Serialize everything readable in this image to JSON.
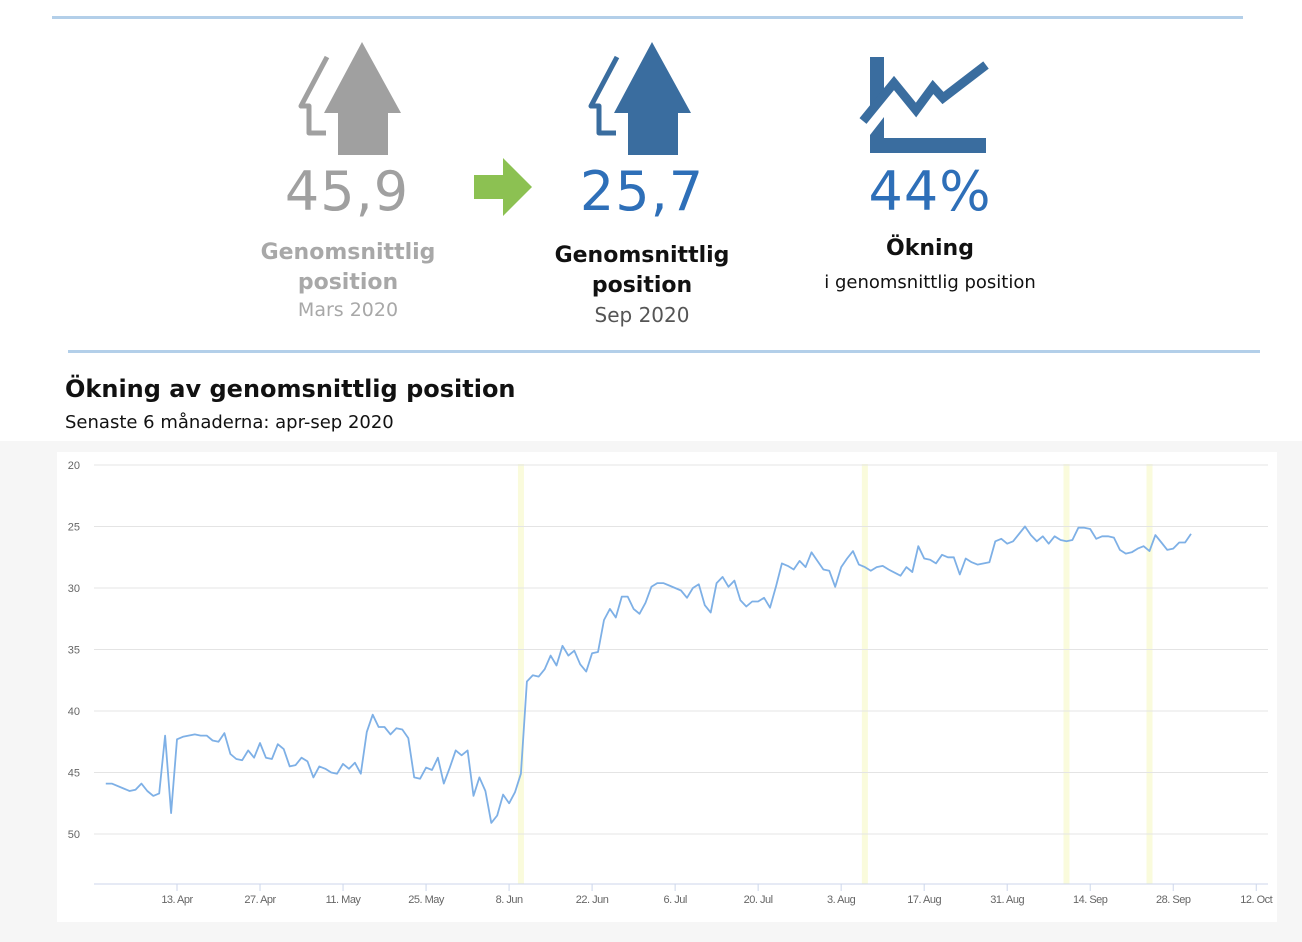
{
  "kpis": {
    "before": {
      "value": "45,9",
      "label": "Genomsnittlig position",
      "period": "Mars 2020",
      "icon": "double-arrow-up-icon",
      "color": "#a0a0a0"
    },
    "after": {
      "value": "25,7",
      "label": "Genomsnittlig position",
      "period": "Sep 2020",
      "icon": "double-arrow-up-icon",
      "color": "#3a6d9f"
    },
    "change": {
      "value": "44%",
      "label": "Ökning",
      "description": "i genomsnittlig position",
      "icon": "trend-chart-icon"
    },
    "arrow_color": "#8cc152",
    "value_color": "#2e6fb8"
  },
  "section": {
    "title": "Ökning av genomsnittlig position",
    "subtitle": "Senaste 6 månaderna: apr-sep 2020"
  },
  "chart_data": {
    "type": "line",
    "title": "Ökning av genomsnittlig position",
    "xlabel": "",
    "ylabel": "",
    "x_unit": "days since 1 Apr 2020",
    "ylim": [
      20,
      54
    ],
    "y_inverted": true,
    "yticks": [
      "20",
      "25",
      "30",
      "35",
      "40",
      "45",
      "50"
    ],
    "xticks": [
      {
        "label": "13. Apr",
        "day": 12
      },
      {
        "label": "27. Apr",
        "day": 26
      },
      {
        "label": "11. May",
        "day": 40
      },
      {
        "label": "25. May",
        "day": 54
      },
      {
        "label": "8. Jun",
        "day": 68
      },
      {
        "label": "22. Jun",
        "day": 82
      },
      {
        "label": "6. Jul",
        "day": 96
      },
      {
        "label": "20. Jul",
        "day": 110
      },
      {
        "label": "3. Aug",
        "day": 124
      },
      {
        "label": "17. Aug",
        "day": 138
      },
      {
        "label": "31. Aug",
        "day": 152
      },
      {
        "label": "14. Sep",
        "day": 166
      },
      {
        "label": "28. Sep",
        "day": 180
      },
      {
        "label": "12. Oct",
        "day": 194
      }
    ],
    "grid": true,
    "line_color": "#7eb0e6",
    "band_color": "#fafbdc",
    "annotation_bands": [
      70,
      128,
      162,
      176
    ],
    "series": [
      {
        "name": "Genomsnittlig position",
        "points": [
          [
            0,
            45.9
          ],
          [
            1,
            45.9
          ],
          [
            3,
            46.3
          ],
          [
            4,
            46.5
          ],
          [
            5,
            46.4
          ],
          [
            6,
            45.9
          ],
          [
            7,
            46.5
          ],
          [
            8,
            46.9
          ],
          [
            9,
            46.7
          ],
          [
            10,
            42.0
          ],
          [
            11,
            48.3
          ],
          [
            12,
            42.3
          ],
          [
            13,
            42.1
          ],
          [
            15,
            41.9
          ],
          [
            16,
            42.0
          ],
          [
            17,
            42.0
          ],
          [
            18,
            42.4
          ],
          [
            19,
            42.5
          ],
          [
            20,
            41.8
          ],
          [
            21,
            43.5
          ],
          [
            22,
            43.9
          ],
          [
            23,
            44.0
          ],
          [
            24,
            43.2
          ],
          [
            25,
            43.8
          ],
          [
            26,
            42.6
          ],
          [
            27,
            43.8
          ],
          [
            28,
            43.9
          ],
          [
            29,
            42.7
          ],
          [
            30,
            43.1
          ],
          [
            31,
            44.5
          ],
          [
            32,
            44.4
          ],
          [
            33,
            43.8
          ],
          [
            34,
            44.1
          ],
          [
            35,
            45.4
          ],
          [
            36,
            44.5
          ],
          [
            37,
            44.7
          ],
          [
            38,
            45.0
          ],
          [
            39,
            45.1
          ],
          [
            40,
            44.3
          ],
          [
            41,
            44.7
          ],
          [
            42,
            44.2
          ],
          [
            43,
            45.1
          ],
          [
            44,
            41.7
          ],
          [
            45,
            40.3
          ],
          [
            46,
            41.3
          ],
          [
            47,
            41.3
          ],
          [
            48,
            41.9
          ],
          [
            49,
            41.4
          ],
          [
            50,
            41.5
          ],
          [
            51,
            42.2
          ],
          [
            52,
            45.4
          ],
          [
            53,
            45.5
          ],
          [
            54,
            44.6
          ],
          [
            55,
            44.8
          ],
          [
            56,
            43.8
          ],
          [
            57,
            45.9
          ],
          [
            58,
            44.6
          ],
          [
            59,
            43.2
          ],
          [
            60,
            43.6
          ],
          [
            61,
            43.2
          ],
          [
            62,
            46.9
          ],
          [
            63,
            45.4
          ],
          [
            64,
            46.5
          ],
          [
            65,
            49.1
          ],
          [
            66,
            48.5
          ],
          [
            67,
            46.8
          ],
          [
            68,
            47.5
          ],
          [
            69,
            46.6
          ],
          [
            70,
            45.1
          ],
          [
            71,
            37.6
          ],
          [
            72,
            37.1
          ],
          [
            73,
            37.2
          ],
          [
            74,
            36.6
          ],
          [
            75,
            35.5
          ],
          [
            76,
            36.3
          ],
          [
            77,
            34.7
          ],
          [
            78,
            35.5
          ],
          [
            79,
            35.1
          ],
          [
            80,
            36.2
          ],
          [
            81,
            36.8
          ],
          [
            82,
            35.3
          ],
          [
            83,
            35.2
          ],
          [
            84,
            32.6
          ],
          [
            85,
            31.7
          ],
          [
            86,
            32.4
          ],
          [
            87,
            30.7
          ],
          [
            88,
            30.7
          ],
          [
            89,
            31.7
          ],
          [
            90,
            32.1
          ],
          [
            91,
            31.2
          ],
          [
            92,
            29.9
          ],
          [
            93,
            29.6
          ],
          [
            94,
            29.6
          ],
          [
            95,
            29.8
          ],
          [
            96,
            30.0
          ],
          [
            97,
            30.2
          ],
          [
            98,
            30.8
          ],
          [
            99,
            30.0
          ],
          [
            100,
            29.7
          ],
          [
            101,
            31.4
          ],
          [
            102,
            32.0
          ],
          [
            103,
            29.6
          ],
          [
            104,
            29.1
          ],
          [
            105,
            29.9
          ],
          [
            106,
            29.4
          ],
          [
            107,
            31.0
          ],
          [
            108,
            31.5
          ],
          [
            109,
            31.1
          ],
          [
            110,
            31.1
          ],
          [
            111,
            30.8
          ],
          [
            112,
            31.6
          ],
          [
            113,
            29.9
          ],
          [
            114,
            28.0
          ],
          [
            115,
            28.2
          ],
          [
            116,
            28.5
          ],
          [
            117,
            27.8
          ],
          [
            118,
            28.3
          ],
          [
            119,
            27.1
          ],
          [
            120,
            27.8
          ],
          [
            121,
            28.5
          ],
          [
            122,
            28.6
          ],
          [
            123,
            29.9
          ],
          [
            124,
            28.3
          ],
          [
            125,
            27.6
          ],
          [
            126,
            27.0
          ],
          [
            127,
            28.1
          ],
          [
            128,
            28.3
          ],
          [
            129,
            28.6
          ],
          [
            130,
            28.3
          ],
          [
            131,
            28.2
          ],
          [
            132,
            28.5
          ],
          [
            134,
            29.0
          ],
          [
            135,
            28.3
          ],
          [
            136,
            28.7
          ],
          [
            137,
            26.6
          ],
          [
            138,
            27.6
          ],
          [
            139,
            27.7
          ],
          [
            140,
            28.0
          ],
          [
            141,
            27.3
          ],
          [
            142,
            27.5
          ],
          [
            143,
            27.5
          ],
          [
            144,
            28.9
          ],
          [
            145,
            27.6
          ],
          [
            146,
            27.9
          ],
          [
            147,
            28.1
          ],
          [
            149,
            27.9
          ],
          [
            150,
            26.2
          ],
          [
            151,
            26.0
          ],
          [
            152,
            26.4
          ],
          [
            153,
            26.2
          ],
          [
            155,
            25.0
          ],
          [
            156,
            25.7
          ],
          [
            157,
            26.2
          ],
          [
            158,
            25.8
          ],
          [
            159,
            26.4
          ],
          [
            160,
            25.8
          ],
          [
            161,
            26.1
          ],
          [
            162,
            26.2
          ],
          [
            163,
            26.1
          ],
          [
            164,
            25.1
          ],
          [
            165,
            25.1
          ],
          [
            166,
            25.2
          ],
          [
            167,
            26.0
          ],
          [
            168,
            25.8
          ],
          [
            169,
            25.8
          ],
          [
            170,
            25.9
          ],
          [
            171,
            26.9
          ],
          [
            172,
            27.2
          ],
          [
            173,
            27.1
          ],
          [
            174,
            26.8
          ],
          [
            175,
            26.6
          ],
          [
            176,
            27.0
          ],
          [
            177,
            25.7
          ],
          [
            178,
            26.3
          ],
          [
            179,
            26.9
          ],
          [
            180,
            26.8
          ],
          [
            181,
            26.3
          ],
          [
            182,
            26.3
          ],
          [
            183,
            25.6
          ]
        ]
      }
    ]
  }
}
